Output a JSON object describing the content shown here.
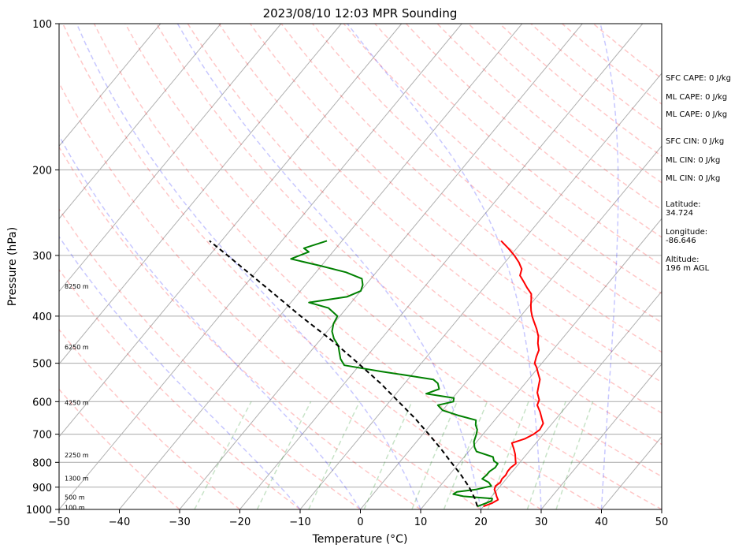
{
  "chart_data": {
    "type": "line",
    "title": "2023/08/10 12:03 MPR Sounding",
    "xlabel": "Temperature (°C)",
    "ylabel": "Pressure (hPa)",
    "xlim": [
      -50,
      50
    ],
    "ylim": [
      1000,
      100
    ],
    "y_scale": "log",
    "skew": true,
    "grid": true,
    "x_ticks": [
      "−50",
      "−40",
      "−30",
      "−20",
      "−10",
      "0",
      "10",
      "20",
      "30",
      "40",
      "50"
    ],
    "y_ticks": [
      "100",
      "200",
      "300",
      "400",
      "500",
      "600",
      "700",
      "800",
      "900",
      "1000"
    ],
    "height_labels": [
      {
        "label": "100 m",
        "p": 990
      },
      {
        "label": "500 m",
        "p": 943
      },
      {
        "label": "1300 m",
        "p": 862
      },
      {
        "label": "2250 m",
        "p": 773
      },
      {
        "label": "4250 m",
        "p": 603
      },
      {
        "label": "6250 m",
        "p": 463
      },
      {
        "label": "8250 m",
        "p": 347
      }
    ],
    "side_info": [
      "SFC CAPE: 0 J/kg",
      "ML CAPE: 0 J/kg",
      "ML CAPE: 0 J/kg",
      "SFC CIN: 0 J/kg",
      "ML CIN: 0 J/kg",
      "ML CIN: 0 J/kg",
      "Latitude:",
      "34.724",
      "Longitude:",
      "-86.646",
      "Altitude:",
      "196 m AGL"
    ],
    "series": [
      {
        "color": "#ff0000",
        "points": [
          [
            986,
            20.0
          ],
          [
            970,
            21.0
          ],
          [
            955,
            21.5
          ],
          [
            940,
            20.8
          ],
          [
            925,
            20.2
          ],
          [
            910,
            19.5
          ],
          [
            895,
            19.2
          ],
          [
            880,
            19.5
          ],
          [
            865,
            19.3
          ],
          [
            850,
            19.4
          ],
          [
            835,
            19.2
          ],
          [
            820,
            19.2
          ],
          [
            805,
            19.5
          ],
          [
            790,
            18.9
          ],
          [
            770,
            18.1
          ],
          [
            750,
            17.1
          ],
          [
            730,
            16.0
          ],
          [
            715,
            17.6
          ],
          [
            700,
            18.4
          ],
          [
            685,
            18.8
          ],
          [
            665,
            18.5
          ],
          [
            650,
            17.6
          ],
          [
            630,
            16.4
          ],
          [
            610,
            15.0
          ],
          [
            595,
            14.6
          ],
          [
            575,
            13.3
          ],
          [
            555,
            12.5
          ],
          [
            540,
            11.9
          ],
          [
            525,
            10.8
          ],
          [
            510,
            9.7
          ],
          [
            500,
            8.8
          ],
          [
            485,
            8.2
          ],
          [
            470,
            7.7
          ],
          [
            455,
            6.6
          ],
          [
            440,
            5.7
          ],
          [
            425,
            4.4
          ],
          [
            410,
            2.9
          ],
          [
            400,
            1.9
          ],
          [
            390,
            1.0
          ],
          [
            380,
            0.2
          ],
          [
            370,
            -0.5
          ],
          [
            360,
            -1.3
          ],
          [
            350,
            -2.8
          ],
          [
            340,
            -4.2
          ],
          [
            330,
            -5.7
          ],
          [
            320,
            -6.3
          ],
          [
            310,
            -7.7
          ],
          [
            300,
            -9.4
          ],
          [
            290,
            -11.4
          ],
          [
            280,
            -13.6
          ]
        ]
      },
      {
        "color": "#008000",
        "points": [
          [
            986,
            19.0
          ],
          [
            970,
            20.0
          ],
          [
            960,
            20.6
          ],
          [
            950,
            20.4
          ],
          [
            940,
            15.3
          ],
          [
            930,
            13.3
          ],
          [
            920,
            13.6
          ],
          [
            910,
            16.4
          ],
          [
            895,
            18.5
          ],
          [
            880,
            17.6
          ],
          [
            865,
            16.0
          ],
          [
            850,
            16.2
          ],
          [
            835,
            16.2
          ],
          [
            820,
            16.6
          ],
          [
            805,
            16.5
          ],
          [
            795,
            15.5
          ],
          [
            780,
            14.8
          ],
          [
            760,
            11.3
          ],
          [
            745,
            10.4
          ],
          [
            725,
            9.5
          ],
          [
            700,
            8.9
          ],
          [
            685,
            8.4
          ],
          [
            670,
            7.5
          ],
          [
            655,
            6.9
          ],
          [
            640,
            3.2
          ],
          [
            625,
            0.0
          ],
          [
            610,
            -1.5
          ],
          [
            600,
            0.6
          ],
          [
            590,
            0.2
          ],
          [
            578,
            -5.0
          ],
          [
            565,
            -3.5
          ],
          [
            550,
            -4.5
          ],
          [
            540,
            -5.8
          ],
          [
            530,
            -10.5
          ],
          [
            520,
            -15.5
          ],
          [
            505,
            -22.5
          ],
          [
            490,
            -24.0
          ],
          [
            475,
            -25.1
          ],
          [
            460,
            -26.2
          ],
          [
            445,
            -27.9
          ],
          [
            430,
            -29.2
          ],
          [
            415,
            -30.0
          ],
          [
            400,
            -30.4
          ],
          [
            385,
            -33.0
          ],
          [
            375,
            -37.0
          ],
          [
            365,
            -31.5
          ],
          [
            355,
            -30.0
          ],
          [
            345,
            -30.5
          ],
          [
            335,
            -31.5
          ],
          [
            325,
            -35.0
          ],
          [
            315,
            -40.2
          ],
          [
            305,
            -46.0
          ],
          [
            295,
            -44.0
          ],
          [
            290,
            -45.3
          ],
          [
            280,
            -42.5
          ]
        ]
      },
      {
        "color": "#000000",
        "style": "dashed",
        "points": [
          [
            986,
            19.0
          ],
          [
            950,
            17.5
          ],
          [
            900,
            15.0
          ],
          [
            850,
            12.0
          ],
          [
            800,
            8.6
          ],
          [
            750,
            5.0
          ],
          [
            700,
            1.0
          ],
          [
            650,
            -3.4
          ],
          [
            600,
            -8.5
          ],
          [
            550,
            -14.0
          ],
          [
            500,
            -20.5
          ],
          [
            450,
            -27.8
          ],
          [
            400,
            -36.5
          ],
          [
            350,
            -46.0
          ],
          [
            300,
            -57.0
          ],
          [
            280,
            -62.0
          ]
        ]
      }
    ]
  }
}
